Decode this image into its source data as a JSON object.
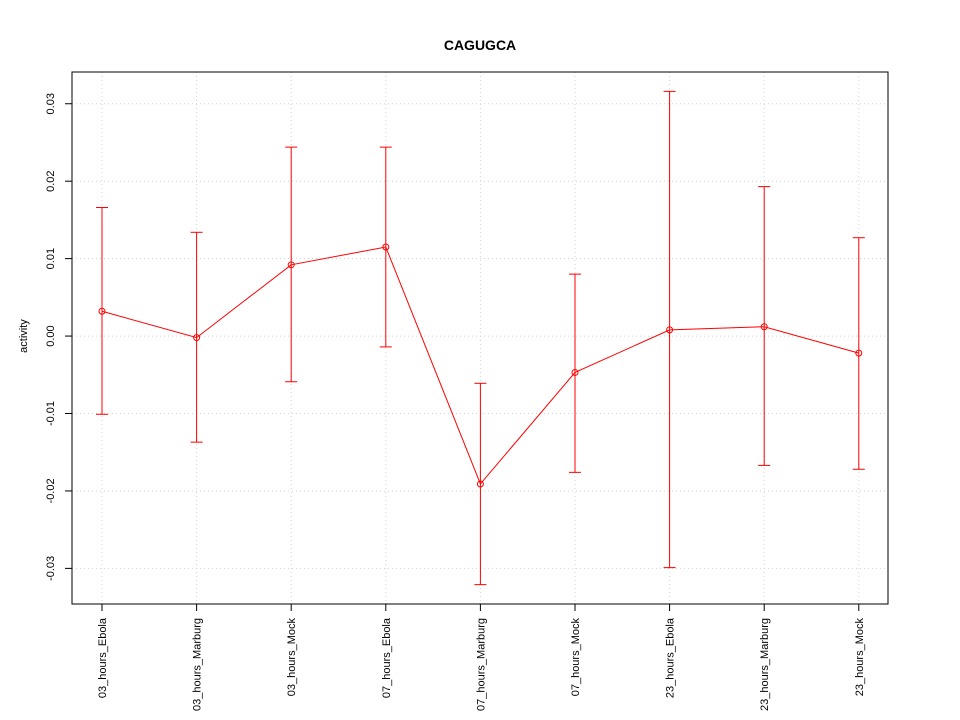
{
  "chart_data": {
    "type": "line",
    "title": "CAGUGCA",
    "xlabel": "",
    "ylabel": "activity",
    "categories": [
      "03_hours_Ebola",
      "03_hours_Marburg",
      "03_hours_Mock",
      "07_hours_Ebola",
      "07_hours_Marburg",
      "07_hours_Mock",
      "23_hours_Ebola",
      "23_hours_Marburg",
      "23_hours_Mock"
    ],
    "series": [
      {
        "values": [
          0.0032,
          -0.0002,
          0.0092,
          0.0115,
          -0.0191,
          -0.0047,
          0.0008,
          0.0012,
          -0.0022
        ],
        "error_low": [
          -0.0101,
          -0.0137,
          -0.0059,
          -0.0014,
          -0.0321,
          -0.0176,
          -0.0299,
          -0.0167,
          -0.0172
        ],
        "error_high": [
          0.0166,
          0.0134,
          0.0244,
          0.0244,
          -0.0061,
          0.008,
          0.0316,
          0.0193,
          0.0127
        ],
        "color": "#ff0000"
      }
    ],
    "yticks": [
      -0.03,
      -0.02,
      -0.01,
      0.0,
      0.01,
      0.02,
      0.03
    ],
    "ytick_labels": [
      "-0.03",
      "-0.02",
      "-0.01",
      "0.00",
      "0.01",
      "0.02",
      "0.03"
    ],
    "ylim": [
      -0.0346,
      0.0341
    ],
    "grid": true
  }
}
